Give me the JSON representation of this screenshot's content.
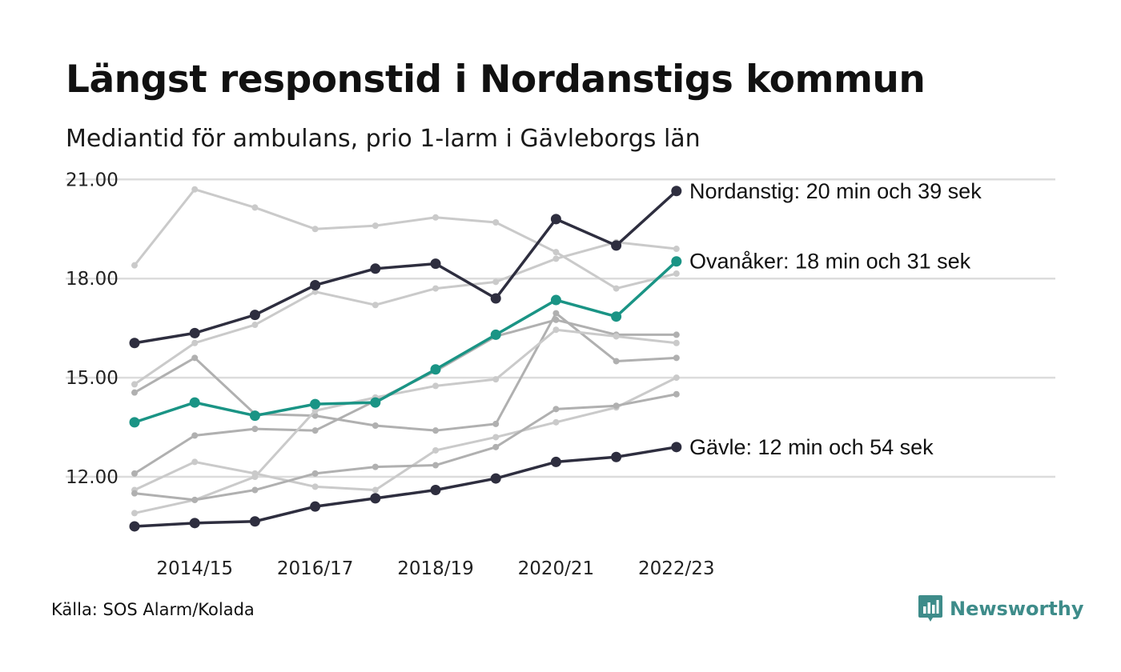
{
  "title": "Längst responstid i Nordanstigs kommun",
  "subtitle": "Mediantid för ambulans, prio 1-larm i Gävleborgs län",
  "source": "Källa: SOS Alarm/Kolada",
  "brand": {
    "name": "Newsworthy",
    "logo_icon": "bar-chart-speech-bubble-icon",
    "color": "#3e8c8a"
  },
  "colors": {
    "highlight_dark": "#2e2e3f",
    "highlight_teal": "#1a9485",
    "other_light": "#cacaca",
    "other_mid": "#b0b0b0",
    "gridline": "#dcdcdc"
  },
  "chart_data": {
    "type": "line",
    "x": [
      "2013/14",
      "2014/15",
      "2015/16",
      "2016/17",
      "2017/18",
      "2018/19",
      "2019/20",
      "2020/21",
      "2021/22",
      "2022/23"
    ],
    "x_tick_labels": [
      "2014/15",
      "2016/17",
      "2018/19",
      "2020/21",
      "2022/23"
    ],
    "y_ticks": [
      "12.00",
      "15.00",
      "18.00",
      "21.00"
    ],
    "ylim": [
      10.4,
      21.1
    ],
    "grid": "horizontal",
    "legend": "none (direct labels)",
    "highlighted": [
      {
        "id": "nordanstig",
        "label": "Nordanstig: 20 min och 39 sek",
        "color": "#2e2e3f",
        "values": [
          16.05,
          16.35,
          16.9,
          17.8,
          18.3,
          18.45,
          17.4,
          19.8,
          19.0,
          20.65
        ]
      },
      {
        "id": "ovanaker",
        "label": "Ovanåker: 18 min och 31 sek",
        "color": "#1a9485",
        "values": [
          13.65,
          14.25,
          13.85,
          14.2,
          14.25,
          15.25,
          16.3,
          17.35,
          16.85,
          18.52
        ]
      },
      {
        "id": "gavle",
        "label": "Gävle: 12 min och 54 sek",
        "color": "#2e2e3f",
        "values": [
          10.5,
          10.6,
          10.65,
          11.1,
          11.35,
          11.6,
          11.95,
          12.45,
          12.6,
          12.9
        ]
      }
    ],
    "other_series": [
      {
        "color": "#cacaca",
        "values": [
          18.4,
          20.7,
          20.15,
          19.5,
          19.6,
          19.85,
          19.7,
          18.8,
          17.7,
          18.15
        ]
      },
      {
        "color": "#cacaca",
        "values": [
          14.8,
          16.05,
          16.6,
          17.6,
          17.2,
          17.7,
          17.9,
          18.6,
          19.1,
          18.9
        ]
      },
      {
        "color": "#b0b0b0",
        "values": [
          14.55,
          15.6,
          13.9,
          13.85,
          13.55,
          13.4,
          13.6,
          16.95,
          15.5,
          15.6
        ]
      },
      {
        "color": "#b0b0b0",
        "values": [
          12.1,
          13.25,
          13.45,
          13.4,
          14.3,
          15.2,
          16.25,
          16.75,
          16.3,
          16.3
        ]
      },
      {
        "color": "#cacaca",
        "values": [
          11.6,
          12.45,
          12.1,
          11.7,
          11.6,
          12.8,
          13.2,
          13.65,
          14.1,
          15.0
        ]
      },
      {
        "color": "#cacaca",
        "values": [
          10.9,
          11.3,
          12.0,
          14.0,
          14.4,
          14.75,
          14.95,
          16.45,
          16.25,
          16.05
        ]
      },
      {
        "color": "#b0b0b0",
        "values": [
          11.5,
          11.3,
          11.6,
          12.1,
          12.3,
          12.35,
          12.9,
          14.05,
          14.15,
          14.5
        ]
      }
    ]
  }
}
